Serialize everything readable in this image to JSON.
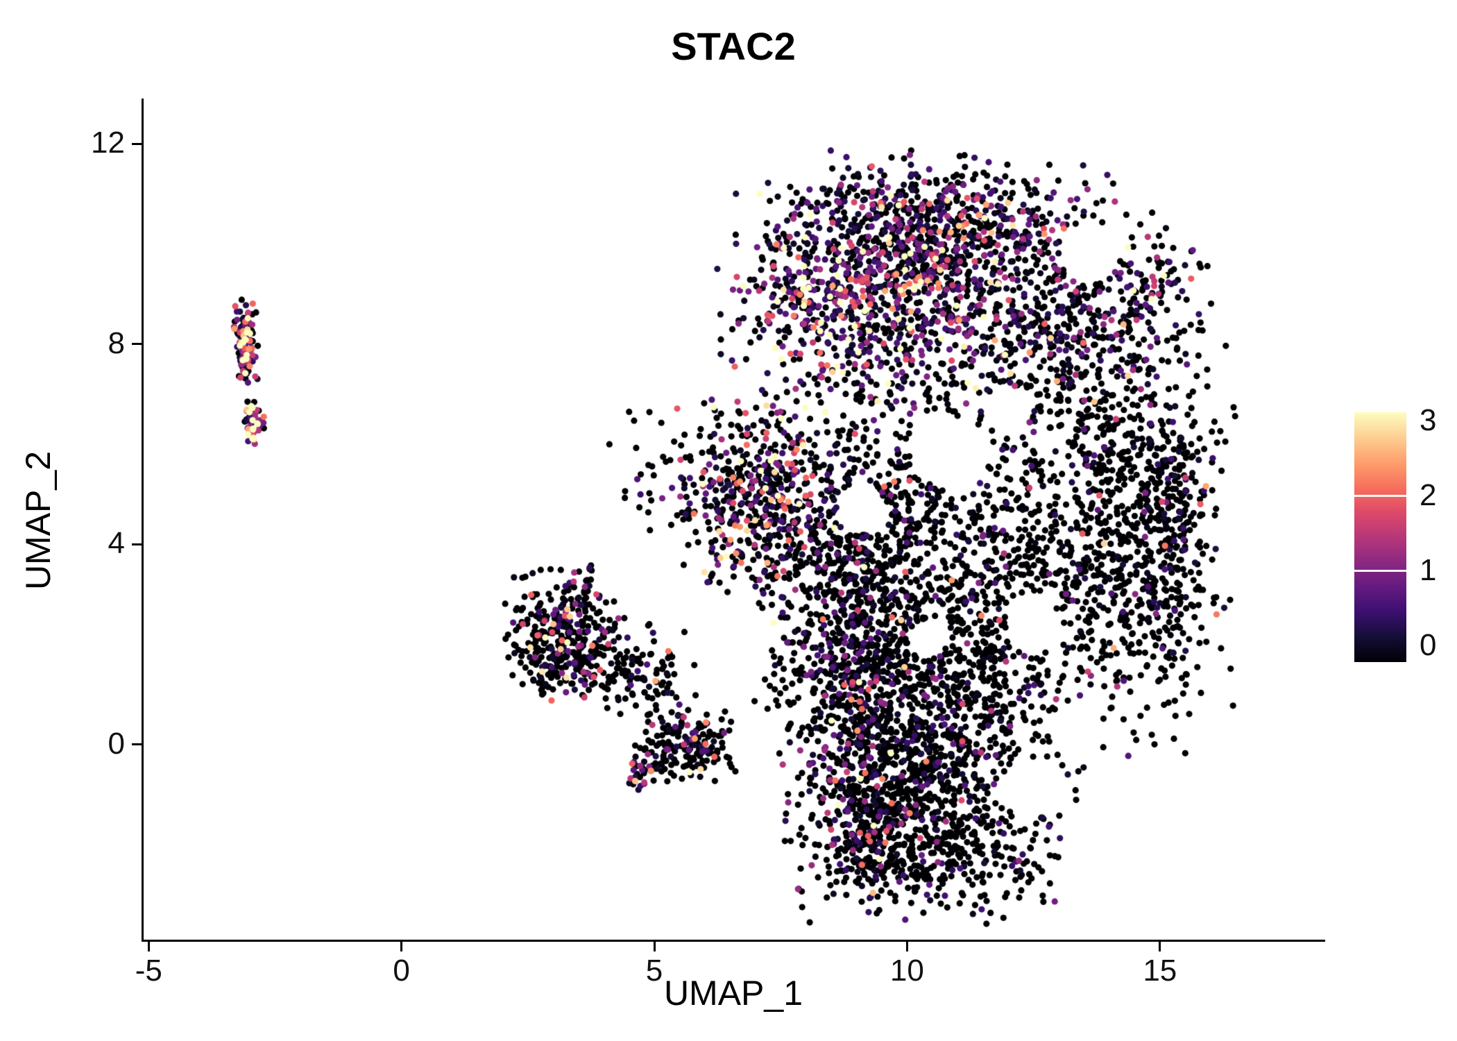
{
  "chart_data": {
    "type": "scatter",
    "title": "STAC2",
    "xlabel": "UMAP_1",
    "ylabel": "UMAP_2",
    "xlim": [
      -5.1,
      18.2
    ],
    "ylim": [
      -3.9,
      12.85
    ],
    "xticks": [
      -5,
      0,
      5,
      10,
      15
    ],
    "yticks": [
      0,
      4,
      8,
      12
    ],
    "grid": false,
    "legend_position": "right",
    "point_radius_px": 4.6,
    "seed": 7,
    "colors": {
      "background": "#ffffff",
      "axis": "#000000",
      "text": "#111111",
      "zero_expression": "#000004",
      "high_expression": "#fcfdbf"
    },
    "colorbar": {
      "min": 0,
      "max": 3,
      "ticks": [
        0,
        1,
        2,
        3
      ],
      "stops": [
        "#000004",
        "#140e36",
        "#3b0f70",
        "#641a80",
        "#8c2981",
        "#b73779",
        "#de4968",
        "#f7705c",
        "#fe9f6d",
        "#fecf92",
        "#fcfdbf"
      ]
    },
    "clusters": [
      {
        "name": "left-satellite-top",
        "cx": -3.08,
        "cy": 8.0,
        "sx": 0.11,
        "sy": 0.42,
        "n": 130,
        "p_zero": 0.3,
        "mean": 1.3
      },
      {
        "name": "left-satellite-bottom",
        "cx": -2.92,
        "cy": 6.45,
        "sx": 0.1,
        "sy": 0.22,
        "n": 50,
        "p_zero": 0.2,
        "mean": 1.8
      },
      {
        "name": "mid-left-blob",
        "cx": 3.2,
        "cy": 2.2,
        "sx": 0.5,
        "sy": 0.6,
        "n": 380,
        "p_zero": 0.72,
        "mean": 0.9
      },
      {
        "name": "mid-left-tail",
        "cx": 4.6,
        "cy": 1.5,
        "sx": 0.55,
        "sy": 0.45,
        "n": 110,
        "p_zero": 0.85,
        "mean": 0.6
      },
      {
        "name": "small-south-cluster",
        "cx": 5.6,
        "cy": 0.0,
        "sx": 0.45,
        "sy": 0.35,
        "n": 180,
        "p_zero": 0.68,
        "mean": 0.8
      },
      {
        "name": "south-red-spur",
        "cx": 4.7,
        "cy": -0.6,
        "sx": 0.14,
        "sy": 0.14,
        "n": 25,
        "p_zero": 0.3,
        "mean": 1.6
      },
      {
        "name": "main-top-cap",
        "cx": 10.4,
        "cy": 10.4,
        "sx": 1.5,
        "sy": 0.65,
        "n": 550,
        "p_zero": 0.5,
        "mean": 0.9
      },
      {
        "name": "main-upper-hot",
        "cx": 9.1,
        "cy": 8.9,
        "sx": 1.25,
        "sy": 1.0,
        "n": 750,
        "p_zero": 0.3,
        "mean": 1.1
      },
      {
        "name": "main-upper-right",
        "cx": 12.7,
        "cy": 8.7,
        "sx": 1.4,
        "sy": 1.2,
        "n": 600,
        "p_zero": 0.6,
        "mean": 0.7
      },
      {
        "name": "main-left-arm",
        "cx": 7.0,
        "cy": 5.0,
        "sx": 0.7,
        "sy": 0.9,
        "n": 420,
        "p_zero": 0.5,
        "mean": 1.1
      },
      {
        "name": "main-mid-left",
        "cx": 9.0,
        "cy": 3.3,
        "sx": 0.9,
        "sy": 1.8,
        "n": 600,
        "p_zero": 0.78,
        "mean": 0.7
      },
      {
        "name": "main-center",
        "cx": 11.1,
        "cy": 3.7,
        "sx": 1.8,
        "sy": 1.9,
        "n": 850,
        "p_zero": 0.82,
        "mean": 0.6
      },
      {
        "name": "main-right",
        "cx": 14.2,
        "cy": 4.3,
        "sx": 1.0,
        "sy": 2.0,
        "n": 650,
        "p_zero": 0.86,
        "mean": 0.5
      },
      {
        "name": "main-right-edge",
        "cx": 15.2,
        "cy": 4.6,
        "sx": 0.4,
        "sy": 1.4,
        "n": 220,
        "p_zero": 0.8,
        "mean": 0.6
      },
      {
        "name": "main-lower",
        "cx": 10.5,
        "cy": 0.7,
        "sx": 1.4,
        "sy": 1.0,
        "n": 600,
        "p_zero": 0.83,
        "mean": 0.5
      },
      {
        "name": "left-edge-column",
        "cx": 8.9,
        "cy": 0.9,
        "sx": 0.35,
        "sy": 1.4,
        "n": 180,
        "p_zero": 0.55,
        "mean": 0.9
      },
      {
        "name": "bottom-lobe",
        "cx": 10.4,
        "cy": -1.9,
        "sx": 1.3,
        "sy": 0.75,
        "n": 560,
        "p_zero": 0.8,
        "mean": 0.6
      },
      {
        "name": "bottom-lobe-left-streak",
        "cx": 9.3,
        "cy": -1.8,
        "sx": 0.4,
        "sy": 0.7,
        "n": 120,
        "p_zero": 0.6,
        "mean": 0.8
      },
      {
        "name": "neck",
        "cx": 9.6,
        "cy": -0.6,
        "sx": 0.7,
        "sy": 0.5,
        "n": 160,
        "p_zero": 0.75,
        "mean": 0.6
      },
      {
        "name": "sparse-bridge",
        "cx": 5.9,
        "cy": 5.4,
        "sx": 0.8,
        "sy": 0.7,
        "n": 75,
        "p_zero": 0.8,
        "mean": 0.7
      },
      {
        "name": "upper-right-spur",
        "cx": 14.9,
        "cy": 9.0,
        "sx": 0.5,
        "sy": 0.55,
        "n": 60,
        "p_zero": 0.6,
        "mean": 0.8
      }
    ],
    "voids": [
      {
        "x": 10.9,
        "y": 5.8,
        "r": 0.75
      },
      {
        "x": 9.1,
        "y": 4.7,
        "r": 0.5
      },
      {
        "x": 12.5,
        "y": 2.4,
        "r": 0.55
      },
      {
        "x": 13.6,
        "y": 9.8,
        "r": 0.6
      },
      {
        "x": 12.0,
        "y": 6.6,
        "r": 0.45
      },
      {
        "x": 13.4,
        "y": 0.4,
        "r": 0.45
      },
      {
        "x": 12.3,
        "y": -0.9,
        "r": 0.5
      },
      {
        "x": 10.4,
        "y": 2.1,
        "r": 0.4
      }
    ]
  }
}
